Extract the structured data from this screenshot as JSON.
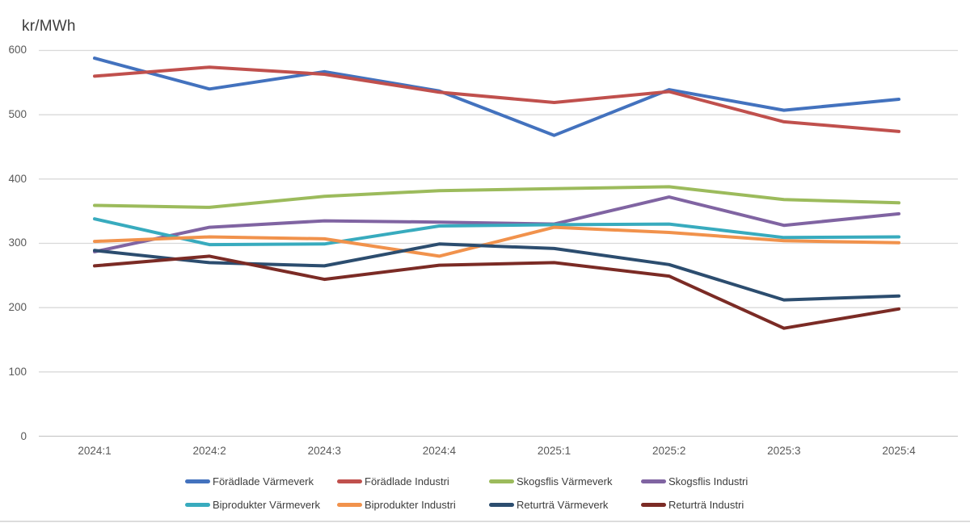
{
  "chart_data": {
    "type": "line",
    "title": "kr/MWh",
    "xlabel": "",
    "ylabel": "kr/MWh",
    "ylim": [
      0,
      600
    ],
    "yticks": [
      0,
      100,
      200,
      300,
      400,
      500,
      600
    ],
    "grid": "horizontal",
    "legend_position": "bottom",
    "categories": [
      "2024:1",
      "2024:2",
      "2024:3",
      "2024:4",
      "2025:1",
      "2025:2",
      "2025:3",
      "2025:4"
    ],
    "series": [
      {
        "name": "Förädlade Värmeverk",
        "color": "#4372BE",
        "values": [
          588,
          540,
          567,
          537,
          468,
          539,
          507,
          524
        ]
      },
      {
        "name": "Förädlade Industri",
        "color": "#C0504D",
        "values": [
          560,
          574,
          563,
          535,
          519,
          536,
          489,
          474
        ]
      },
      {
        "name": "Skogsflis Värmeverk",
        "color": "#9CBB5C",
        "values": [
          359,
          356,
          373,
          382,
          385,
          388,
          368,
          363
        ]
      },
      {
        "name": "Skogsflis Industri",
        "color": "#8064A2",
        "values": [
          287,
          325,
          335,
          333,
          330,
          372,
          328,
          346
        ]
      },
      {
        "name": "Biprodukter Värmeverk",
        "color": "#38ABBE",
        "values": [
          338,
          298,
          299,
          327,
          329,
          330,
          309,
          310
        ]
      },
      {
        "name": "Biprodukter Industri",
        "color": "#F1924C",
        "values": [
          303,
          310,
          307,
          280,
          325,
          317,
          304,
          301
        ]
      },
      {
        "name": "Returträ Värmeverk",
        "color": "#2C4D6F",
        "values": [
          289,
          270,
          265,
          299,
          292,
          267,
          212,
          218
        ]
      },
      {
        "name": "Returträ Industri",
        "color": "#7B2B25",
        "values": [
          265,
          280,
          244,
          266,
          270,
          249,
          168,
          198
        ]
      }
    ]
  },
  "colors": {
    "gridline": "#d9d9d9",
    "axis_line": "#c9c9c9",
    "tick_text": "#595959",
    "title_text": "#3c3c3c",
    "legend_text": "#3c3c3c",
    "background": "#ffffff"
  }
}
